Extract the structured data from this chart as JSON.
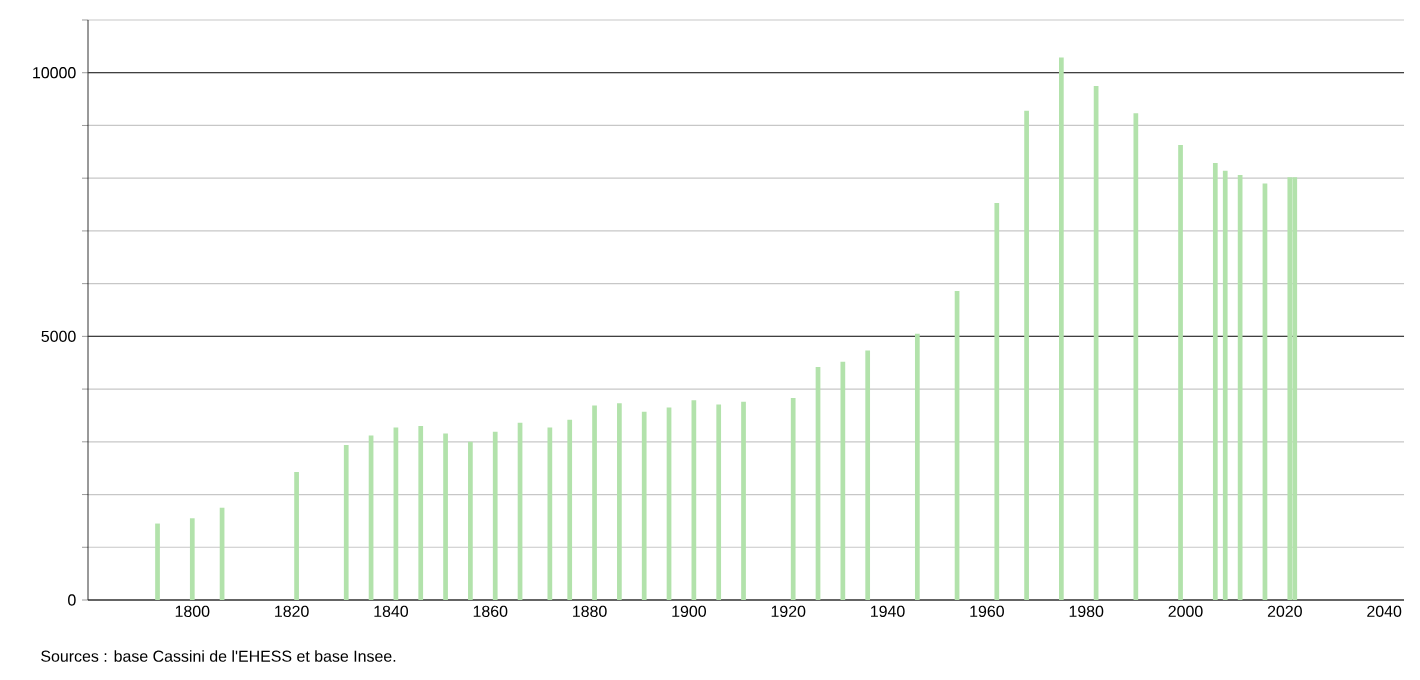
{
  "chart_data": {
    "type": "bar",
    "x": [
      1793,
      1800,
      1806,
      1821,
      1831,
      1836,
      1841,
      1846,
      1851,
      1856,
      1861,
      1866,
      1872,
      1876,
      1881,
      1886,
      1891,
      1896,
      1901,
      1906,
      1911,
      1921,
      1926,
      1931,
      1936,
      1946,
      1954,
      1962,
      1968,
      1975,
      1982,
      1990,
      1999,
      2006,
      2008,
      2011,
      2016,
      2021,
      2022
    ],
    "values": [
      1450,
      1550,
      1750,
      2430,
      2940,
      3120,
      3270,
      3300,
      3160,
      3000,
      3190,
      3360,
      3270,
      3420,
      3690,
      3730,
      3570,
      3650,
      3790,
      3710,
      3760,
      3830,
      4420,
      4520,
      4730,
      5050,
      5860,
      7530,
      9280,
      10290,
      9750,
      9230,
      8630,
      8290,
      8140,
      8060,
      7900,
      8020,
      8020
    ],
    "color": "#b2e2ab",
    "xlim": [
      1779,
      2044
    ],
    "xticks": [
      1800,
      1820,
      1840,
      1860,
      1880,
      1900,
      1920,
      1940,
      1960,
      1980,
      2000,
      2020,
      2040
    ],
    "ylim": [
      0,
      11000
    ],
    "yticks": [
      0,
      {
        "value": 1000,
        "label": null
      },
      {
        "value": 2000,
        "label": null
      },
      {
        "value": 3000,
        "label": null
      },
      {
        "value": 4000,
        "label": null
      },
      5000,
      {
        "value": 6000,
        "label": null
      },
      {
        "value": 7000,
        "label": null
      },
      {
        "value": 8000,
        "label": null
      },
      {
        "value": 9000,
        "label": null
      },
      10000,
      {
        "value": 11000,
        "label": null
      }
    ],
    "grid": "y",
    "annotations": [
      "Sources : base Cassini de l'EHESS et base Insee."
    ]
  }
}
